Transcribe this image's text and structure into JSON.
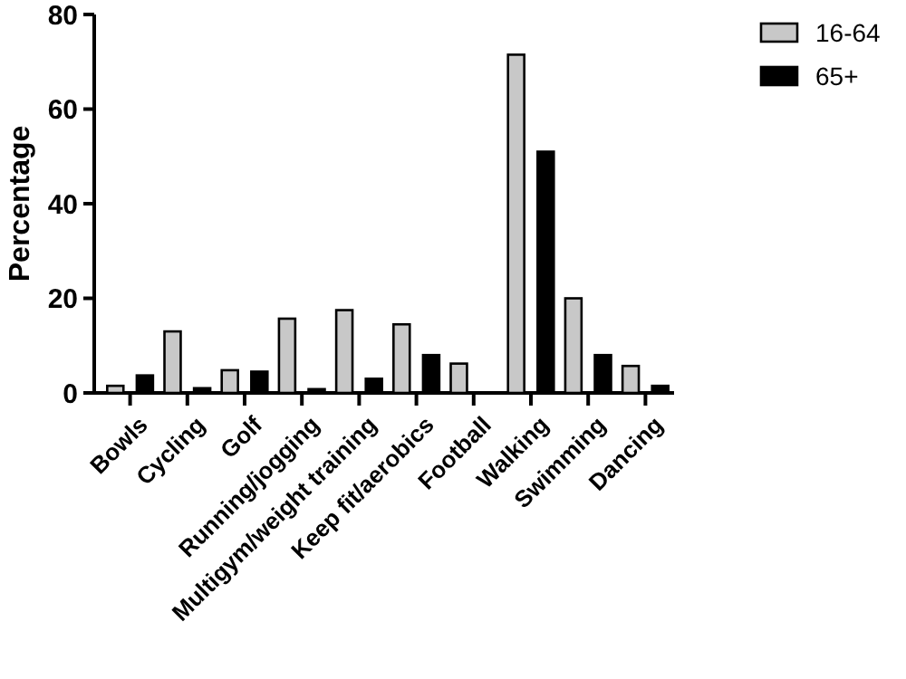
{
  "chart_data": {
    "type": "bar",
    "ylabel": "Percentage",
    "categories": [
      "Bowls",
      "Cycling",
      "Golf",
      "Running/jogging",
      "Multigym/weight training",
      "Keep fit/aerobics",
      "Football",
      "Walking",
      "Swimming",
      "Dancing"
    ],
    "series": [
      {
        "name": "16-64",
        "color": "#c8c8c8",
        "values": [
          1.5,
          13,
          4.8,
          15.7,
          17.5,
          14.5,
          6.2,
          71.5,
          20,
          5.7
        ]
      },
      {
        "name": "65+",
        "color": "#000000",
        "values": [
          3.7,
          1,
          4.5,
          0.8,
          3,
          8,
          0,
          51,
          8,
          1.5
        ]
      }
    ],
    "ylim": [
      0,
      80
    ],
    "yticks": [
      0,
      20,
      40,
      60,
      80
    ],
    "grid": false,
    "legend": "top right"
  }
}
